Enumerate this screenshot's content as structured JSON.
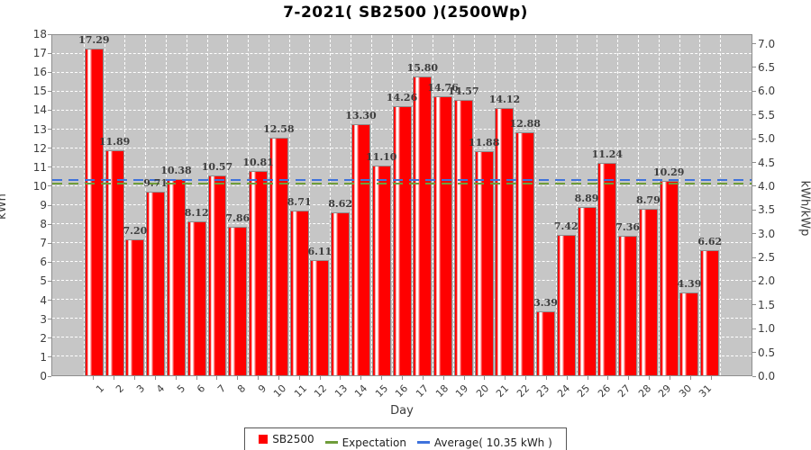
{
  "title": "7-2021( SB2500 )(2500Wp)",
  "chart_data": {
    "type": "bar",
    "title": "7-2021( SB2500 )(2500Wp)",
    "series_name": "SB2500",
    "categories": [
      1,
      2,
      3,
      4,
      5,
      6,
      7,
      8,
      9,
      10,
      11,
      12,
      13,
      14,
      15,
      16,
      17,
      18,
      19,
      20,
      21,
      22,
      23,
      24,
      25,
      26,
      27,
      28,
      29,
      30,
      31
    ],
    "values": [
      17.29,
      11.89,
      7.2,
      9.71,
      10.38,
      8.12,
      10.57,
      7.86,
      10.81,
      12.58,
      8.71,
      6.11,
      8.62,
      13.3,
      11.1,
      14.26,
      15.8,
      14.76,
      14.57,
      11.88,
      14.12,
      12.88,
      3.39,
      7.42,
      8.89,
      11.24,
      7.36,
      8.79,
      10.29,
      4.39,
      6.62
    ],
    "xlabel": "Day",
    "ylabel_left": "kWh",
    "ylabel_right": "kWh/kWp",
    "ylim_left": [
      0,
      18
    ],
    "ylim_right": [
      0,
      7.0
    ],
    "ytick_step_left": 1,
    "ytick_step_right": 0.5,
    "kwp_factor": 2.5,
    "average_kwh": 10.35,
    "expectation_kwh": 10.15,
    "grid": true,
    "legend_position": "bottom"
  },
  "legend": {
    "items": [
      {
        "label": "SB2500",
        "marker": "square",
        "color": "#ff0000"
      },
      {
        "label": "Expectation",
        "marker": "line",
        "color": "#6f9d3a"
      },
      {
        "label": "Average( 10.35 kWh )",
        "marker": "line",
        "color": "#3e72dc"
      }
    ]
  },
  "colors": {
    "bar_fill": "#ff0000",
    "bar_border": "#8e8e8e",
    "plot_background": "#c6c6c6",
    "gridline": "#ffffff",
    "axis": "#8e8e8e",
    "average_line": "#3e72dc",
    "expectation_line": "#6f9d3a",
    "value_label": "#3d3d3d"
  }
}
